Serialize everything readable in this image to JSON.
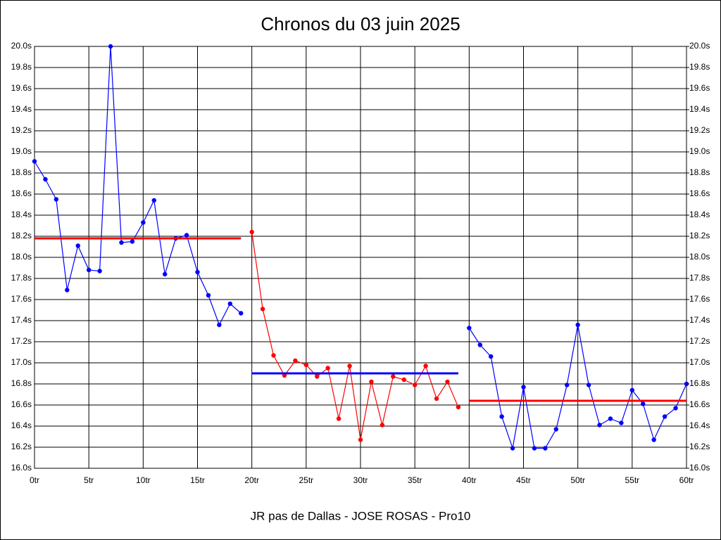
{
  "chart_data": {
    "type": "line",
    "title": "Chronos du 03 juin 2025",
    "xlabel": "JR pas de Dallas - JOSE ROSAS - Pro10",
    "xlim": [
      0,
      60
    ],
    "ylim": [
      16,
      20
    ],
    "y2lim": [
      16,
      20
    ],
    "grid": true,
    "xticks": [
      {
        "value": 0,
        "label": "0tr"
      },
      {
        "value": 5,
        "label": "5tr"
      },
      {
        "value": 10,
        "label": "10tr"
      },
      {
        "value": 15,
        "label": "15tr"
      },
      {
        "value": 20,
        "label": "20tr"
      },
      {
        "value": 25,
        "label": "25tr"
      },
      {
        "value": 30,
        "label": "30tr"
      },
      {
        "value": 35,
        "label": "35tr"
      },
      {
        "value": 40,
        "label": "40tr"
      },
      {
        "value": 45,
        "label": "45tr"
      },
      {
        "value": 50,
        "label": "50tr"
      },
      {
        "value": 55,
        "label": "55tr"
      },
      {
        "value": 60,
        "label": "60tr"
      }
    ],
    "yticks": [
      {
        "value": 16.0,
        "label": "16.0s"
      },
      {
        "value": 16.2,
        "label": "16.2s"
      },
      {
        "value": 16.4,
        "label": "16.4s"
      },
      {
        "value": 16.6,
        "label": "16.6s"
      },
      {
        "value": 16.8,
        "label": "16.8s"
      },
      {
        "value": 17.0,
        "label": "17.0s"
      },
      {
        "value": 17.2,
        "label": "17.2s"
      },
      {
        "value": 17.4,
        "label": "17.4s"
      },
      {
        "value": 17.6,
        "label": "17.6s"
      },
      {
        "value": 17.8,
        "label": "17.8s"
      },
      {
        "value": 18.0,
        "label": "18.0s"
      },
      {
        "value": 18.2,
        "label": "18.2s"
      },
      {
        "value": 18.4,
        "label": "18.4s"
      },
      {
        "value": 18.6,
        "label": "18.6s"
      },
      {
        "value": 18.8,
        "label": "18.8s"
      },
      {
        "value": 19.0,
        "label": "19.0s"
      },
      {
        "value": 19.2,
        "label": "19.2s"
      },
      {
        "value": 19.4,
        "label": "19.4s"
      },
      {
        "value": 19.6,
        "label": "19.6s"
      },
      {
        "value": 19.8,
        "label": "19.8s"
      },
      {
        "value": 20.0,
        "label": "20.0s"
      }
    ],
    "y2ticks": [
      {
        "value": 16.0,
        "label": "16.0s"
      },
      {
        "value": 16.2,
        "label": "16.2s"
      },
      {
        "value": 16.4,
        "label": "16.4s"
      },
      {
        "value": 16.6,
        "label": "16.6s"
      },
      {
        "value": 16.8,
        "label": "16.8s"
      },
      {
        "value": 17.0,
        "label": "17.0s"
      },
      {
        "value": 17.2,
        "label": "17.2s"
      },
      {
        "value": 17.4,
        "label": "17.4s"
      },
      {
        "value": 17.6,
        "label": "17.6s"
      },
      {
        "value": 17.8,
        "label": "17.8s"
      },
      {
        "value": 18.0,
        "label": "18.0s"
      },
      {
        "value": 18.2,
        "label": "18.2s"
      },
      {
        "value": 18.4,
        "label": "18.4s"
      },
      {
        "value": 18.6,
        "label": "18.6s"
      },
      {
        "value": 18.8,
        "label": "18.8s"
      },
      {
        "value": 19.0,
        "label": "19.0s"
      },
      {
        "value": 19.2,
        "label": "19.2s"
      },
      {
        "value": 19.4,
        "label": "19.4s"
      },
      {
        "value": 19.6,
        "label": "19.6s"
      },
      {
        "value": 19.8,
        "label": "19.8s"
      },
      {
        "value": 20.0,
        "label": "20.0s"
      }
    ],
    "series": [
      {
        "color": "#0000ff",
        "x": [
          0,
          1,
          2,
          3,
          4,
          5,
          6,
          7,
          8,
          9,
          10,
          11,
          12,
          13,
          14,
          15,
          16,
          17,
          18,
          19
        ],
        "values": [
          18.91,
          18.74,
          18.55,
          17.69,
          18.11,
          17.88,
          17.87,
          20.0,
          18.14,
          18.15,
          18.33,
          18.54,
          17.84,
          18.18,
          18.21,
          17.86,
          17.64,
          17.36,
          17.56,
          17.47
        ]
      },
      {
        "color": "#ff0000",
        "x": [
          20,
          21,
          22,
          23,
          24,
          25,
          26,
          27,
          28,
          29,
          30,
          31,
          32,
          33,
          34,
          35,
          36,
          37,
          38,
          39
        ],
        "values": [
          18.24,
          17.51,
          17.07,
          16.88,
          17.02,
          16.98,
          16.87,
          16.95,
          16.47,
          16.97,
          16.27,
          16.82,
          16.41,
          16.87,
          16.84,
          16.79,
          16.97,
          16.66,
          16.82,
          16.58
        ]
      },
      {
        "color": "#0000ff",
        "x": [
          40,
          41,
          42,
          43,
          44,
          45,
          46,
          47,
          48,
          49,
          50,
          51,
          52,
          53,
          54,
          55,
          56,
          57,
          58,
          59,
          60
        ],
        "values": [
          17.33,
          17.17,
          17.06,
          16.49,
          16.19,
          16.77,
          16.19,
          16.19,
          16.37,
          16.79,
          17.36,
          16.79,
          16.41,
          16.47,
          16.43,
          16.74,
          16.61,
          16.27,
          16.49,
          16.57,
          16.8
        ]
      }
    ],
    "reference_lines": [
      {
        "color": "#ff0000",
        "x": [
          0,
          19
        ],
        "value": 18.18
      },
      {
        "color": "#0000ff",
        "x": [
          20,
          39
        ],
        "value": 16.9
      },
      {
        "color": "#ff0000",
        "x": [
          40,
          60
        ],
        "value": 16.64
      }
    ]
  }
}
